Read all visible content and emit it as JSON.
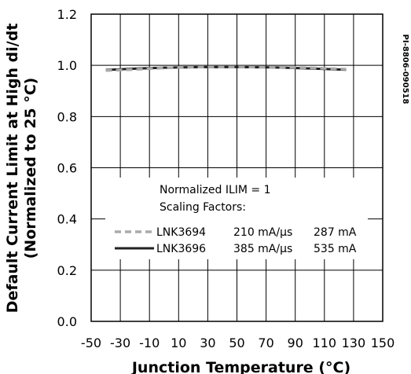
{
  "figure_id": "PI-8806-090518",
  "chart_data": {
    "type": "line",
    "xlabel": "Junction Temperature (°C)",
    "ylabel_line1": "Default Current Limit at High di/dt",
    "ylabel_line2": "(Normalized to 25 °C)",
    "xlim": [
      -50,
      150
    ],
    "ylim": [
      0.0,
      1.2
    ],
    "xticks": [
      "-50",
      "-30",
      "-10",
      "10",
      "30",
      "50",
      "70",
      "90",
      "110",
      "130",
      "150"
    ],
    "yticks": [
      "0.0",
      "0.2",
      "0.4",
      "0.6",
      "0.8",
      "1.0",
      "1.2"
    ],
    "grid": true,
    "legend": {
      "header1": "Normalized ILIM = 1",
      "header2": "Scaling Factors:",
      "entries": [
        {
          "name": "LNK3694",
          "factor1": "210 mA/µs",
          "factor2": "287 mA",
          "color": "#aaaaaa",
          "style": "dashed"
        },
        {
          "name": "LNK3696",
          "factor1": "385 mA/µs",
          "factor2": "535 mA",
          "color": "#222222",
          "style": "solid"
        }
      ]
    },
    "series": [
      {
        "name": "LNK3694",
        "x": [
          -40,
          -20,
          0,
          25,
          50,
          75,
          100,
          125
        ],
        "y": [
          0.98,
          0.984,
          0.99,
          0.994,
          0.994,
          0.993,
          0.99,
          0.985
        ]
      },
      {
        "name": "LNK3696",
        "x": [
          -40,
          -20,
          0,
          25,
          50,
          75,
          100,
          125
        ],
        "y": [
          0.982,
          0.987,
          0.991,
          0.993,
          0.993,
          0.992,
          0.988,
          0.983
        ]
      }
    ]
  }
}
